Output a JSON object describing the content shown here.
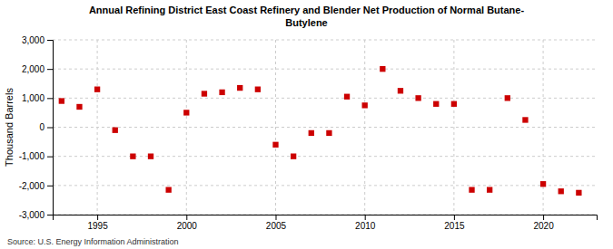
{
  "chart_data": {
    "type": "scatter",
    "title": "Annual Refining District East Coast Refinery and Blender Net Production of Normal Butane-\nButylene",
    "y_label": "Thousand Barrels",
    "source": "Source: U.S. Energy Information Administration",
    "x": [
      1993,
      1994,
      1995,
      1996,
      1997,
      1998,
      1999,
      2000,
      2001,
      2002,
      2003,
      2004,
      2005,
      2006,
      2007,
      2008,
      2009,
      2010,
      2011,
      2012,
      2013,
      2014,
      2015,
      2016,
      2017,
      2018,
      2019,
      2020,
      2021,
      2022
    ],
    "values": [
      900,
      700,
      1300,
      -100,
      -1000,
      -1000,
      -2150,
      500,
      1150,
      1200,
      1350,
      1300,
      -600,
      -1000,
      -200,
      -200,
      1050,
      750,
      2000,
      1250,
      1000,
      800,
      800,
      -2150,
      -2150,
      1000,
      250,
      -1950,
      -2200,
      -2250
    ],
    "color": "#cc0000",
    "marker": "square",
    "xlim": [
      1992.5,
      2023
    ],
    "xticks": [
      1995,
      2000,
      2005,
      2010,
      2015,
      2020
    ],
    "ylim": [
      -3000,
      3000
    ],
    "yticks": [
      {
        "value": -3000,
        "label": "-3,000"
      },
      {
        "value": -2000,
        "label": "-2,000"
      },
      {
        "value": -1000,
        "label": "-1,000"
      },
      0,
      {
        "value": 1000,
        "label": "1,000"
      },
      {
        "value": 2000,
        "label": "2,000"
      },
      {
        "value": 3000,
        "label": "3,000"
      }
    ],
    "grid": true
  }
}
